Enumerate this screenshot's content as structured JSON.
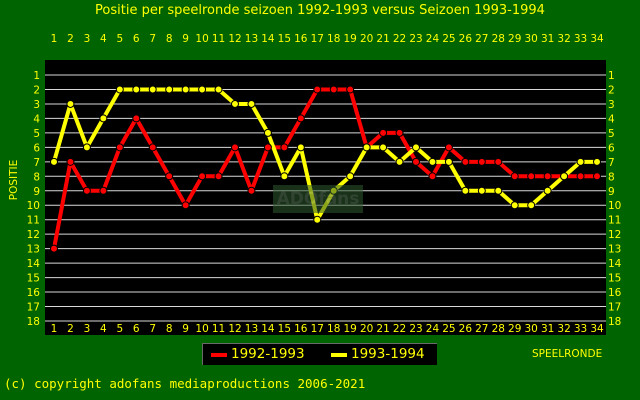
{
  "title": "Positie per speelronde seizoen 1992-1993 versus Seizoen 1993-1994",
  "copyright": "(c) copyright adofans mediaproductions 2006-2021",
  "watermark": "ADOfans",
  "colors": {
    "background": "#006400",
    "plot": "#000000",
    "text": "#ffff00",
    "series1": "#ff0000",
    "series2": "#ffff00",
    "grid": "#d9d9d9"
  },
  "chart_data": {
    "type": "line",
    "title": "Positie per speelronde seizoen 1992-1993 versus Seizoen 1993-1994",
    "xlabel": "SPEELRONDE",
    "ylabel": "POSITIE",
    "x": [
      1,
      2,
      3,
      4,
      5,
      6,
      7,
      8,
      9,
      10,
      11,
      12,
      13,
      14,
      15,
      16,
      17,
      18,
      19,
      20,
      21,
      22,
      23,
      24,
      25,
      26,
      27,
      28,
      29,
      30,
      31,
      32,
      33,
      34
    ],
    "xlim": [
      1,
      34
    ],
    "ylim": [
      1,
      18
    ],
    "y_inverted": true,
    "y_ticks": [
      1,
      2,
      3,
      4,
      5,
      6,
      7,
      8,
      9,
      10,
      11,
      12,
      13,
      14,
      15,
      16,
      17,
      18
    ],
    "grid": true,
    "legend_position": "bottom-center",
    "series": [
      {
        "name": "1992-1993",
        "color": "#ff0000",
        "values": [
          13,
          7,
          9,
          9,
          6,
          4,
          6,
          8,
          10,
          8,
          8,
          6,
          9,
          6,
          6,
          4,
          2,
          2,
          2,
          6,
          5,
          5,
          7,
          8,
          6,
          7,
          7,
          7,
          8,
          8,
          8,
          8,
          8,
          8
        ]
      },
      {
        "name": "1993-1994",
        "color": "#ffff00",
        "values": [
          7,
          3,
          6,
          4,
          2,
          2,
          2,
          2,
          2,
          2,
          2,
          3,
          3,
          5,
          8,
          6,
          11,
          9,
          8,
          6,
          6,
          7,
          6,
          7,
          7,
          9,
          9,
          9,
          10,
          10,
          9,
          8,
          7,
          7
        ]
      }
    ]
  }
}
